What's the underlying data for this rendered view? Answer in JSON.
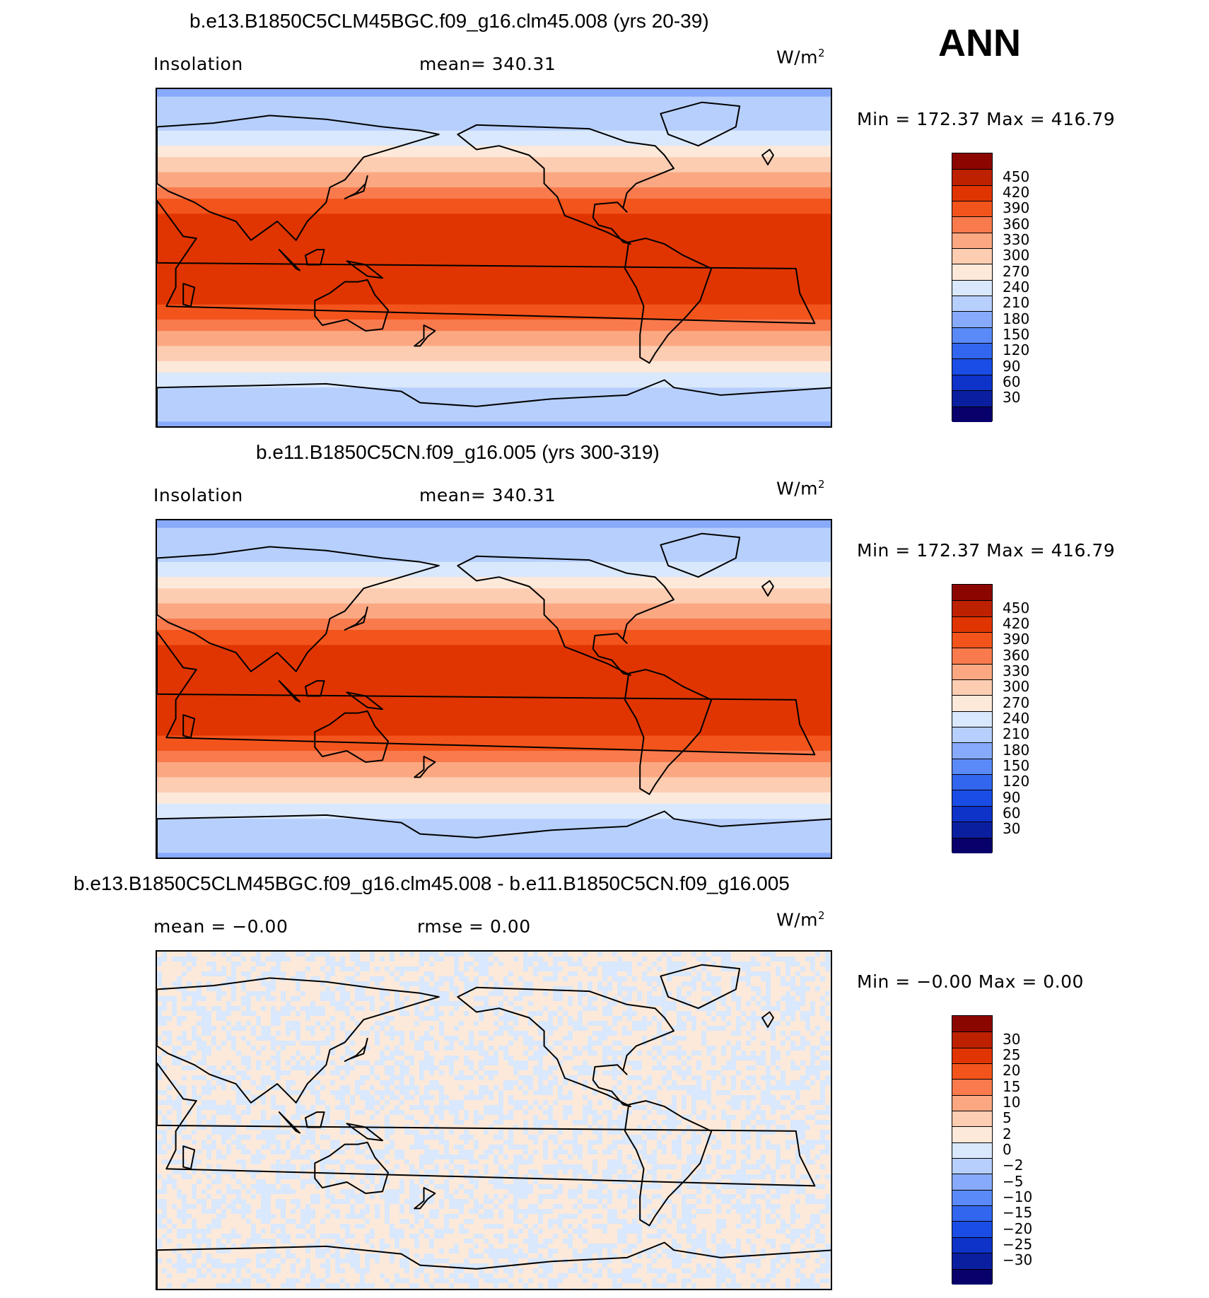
{
  "season": "ANN",
  "panels": [
    {
      "id": "case1",
      "title": "b.e13.B1850C5CLM45BGC.f09_g16.clm45.008 (yrs 20-39)",
      "left_label": "Insolation",
      "mid_label": "mean= 340.31",
      "units": "W/m",
      "units_sup": "2",
      "min_max": "Min = 172.37 Max = 416.79",
      "field": "zonal",
      "colorbar_labels": [
        "450",
        "420",
        "390",
        "360",
        "330",
        "300",
        "270",
        "240",
        "210",
        "180",
        "150",
        "120",
        "90",
        "60",
        "30"
      ]
    },
    {
      "id": "case2",
      "title": "b.e11.B1850C5CN.f09_g16.005 (yrs 300-319)",
      "left_label": "Insolation",
      "mid_label": "mean= 340.31",
      "units": "W/m",
      "units_sup": "2",
      "min_max": "Min = 172.37 Max = 416.79",
      "field": "zonal",
      "colorbar_labels": [
        "450",
        "420",
        "390",
        "360",
        "330",
        "300",
        "270",
        "240",
        "210",
        "180",
        "150",
        "120",
        "90",
        "60",
        "30"
      ]
    },
    {
      "id": "diff",
      "title": "b.e13.B1850C5CLM45BGC.f09_g16.clm45.008 - b.e11.B1850C5CN.f09_g16.005",
      "left_label": "mean =  −0.00",
      "mid_label": "rmse =   0.00",
      "units": "W/m",
      "units_sup": "2",
      "min_max": "Min =  −0.00 Max =   0.00",
      "field": "noise",
      "colorbar_labels": [
        "30",
        "25",
        "20",
        "15",
        "10",
        "5",
        "2",
        "0",
        "−2",
        "−5",
        "−10",
        "−15",
        "−20",
        "−25",
        "−30"
      ]
    }
  ],
  "colors": {
    "abs_scale": [
      "#08006b",
      "#0a1fa0",
      "#0d33c9",
      "#1a4de6",
      "#3366ee",
      "#5a8af7",
      "#88aafc",
      "#b7cffd",
      "#d9e8fc",
      "#fde9d9",
      "#fdcdb2",
      "#fba882",
      "#f87a4d",
      "#f3541c",
      "#e03500",
      "#bd2100",
      "#8c0600"
    ],
    "diff_scale": [
      "#08006b",
      "#0a1fa0",
      "#0d33c9",
      "#1a4de6",
      "#3366ee",
      "#5a8af7",
      "#88aafc",
      "#b7cffd",
      "#d9e8fc",
      "#fde9d9",
      "#fdcdb2",
      "#fba882",
      "#f87a4d",
      "#f3541c",
      "#e03500",
      "#bd2100",
      "#8c0600"
    ]
  },
  "chart_data": [
    {
      "type": "heatmap",
      "title": "b.e13.B1850C5CLM45BGC.f09_g16.clm45.008 (yrs 20-39)",
      "variable": "Insolation",
      "units": "W/m2",
      "mean": 340.31,
      "min": 172.37,
      "max": 416.79,
      "contour_levels": [
        30,
        60,
        90,
        120,
        150,
        180,
        210,
        240,
        270,
        300,
        330,
        360,
        390,
        420,
        450
      ],
      "zonal_profile": {
        "lat": [
          90,
          80,
          70,
          60,
          50,
          40,
          30,
          20,
          10,
          0,
          -10,
          -20,
          -30,
          -40,
          -50,
          -60,
          -70,
          -80,
          -90
        ],
        "value": [
          175,
          185,
          200,
          235,
          285,
          325,
          370,
          400,
          412,
          417,
          412,
          400,
          370,
          325,
          285,
          235,
          200,
          185,
          175
        ]
      }
    },
    {
      "type": "heatmap",
      "title": "b.e11.B1850C5CN.f09_g16.005 (yrs 300-319)",
      "variable": "Insolation",
      "units": "W/m2",
      "mean": 340.31,
      "min": 172.37,
      "max": 416.79,
      "contour_levels": [
        30,
        60,
        90,
        120,
        150,
        180,
        210,
        240,
        270,
        300,
        330,
        360,
        390,
        420,
        450
      ],
      "zonal_profile": {
        "lat": [
          90,
          80,
          70,
          60,
          50,
          40,
          30,
          20,
          10,
          0,
          -10,
          -20,
          -30,
          -40,
          -50,
          -60,
          -70,
          -80,
          -90
        ],
        "value": [
          175,
          185,
          200,
          235,
          285,
          325,
          370,
          400,
          412,
          417,
          412,
          400,
          370,
          325,
          285,
          235,
          200,
          185,
          175
        ]
      }
    },
    {
      "type": "heatmap",
      "title": "b.e13.B1850C5CLM45BGC.f09_g16.clm45.008 - b.e11.B1850C5CN.f09_g16.005",
      "units": "W/m2",
      "mean": -0.0,
      "rmse": 0.0,
      "min": -0.0,
      "max": 0.0,
      "contour_levels": [
        -30,
        -25,
        -20,
        -15,
        -10,
        -5,
        -2,
        0,
        2,
        5,
        10,
        15,
        20,
        25,
        30
      ]
    }
  ]
}
